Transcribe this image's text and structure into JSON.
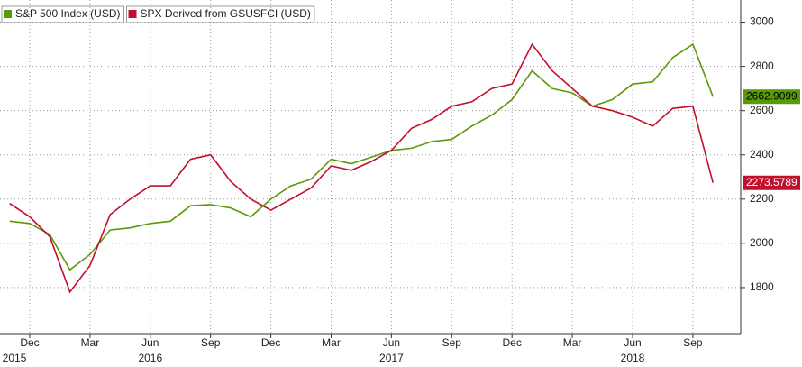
{
  "chart_data": {
    "type": "line",
    "x": [
      "2015-11",
      "2015-12",
      "2016-01",
      "2016-02",
      "2016-03",
      "2016-04",
      "2016-05",
      "2016-06",
      "2016-07",
      "2016-08",
      "2016-09",
      "2016-10",
      "2016-11",
      "2016-12",
      "2017-01",
      "2017-02",
      "2017-03",
      "2017-04",
      "2017-05",
      "2017-06",
      "2017-07",
      "2017-08",
      "2017-09",
      "2017-10",
      "2017-11",
      "2017-12",
      "2018-01",
      "2018-02",
      "2018-03",
      "2018-04",
      "2018-05",
      "2018-06",
      "2018-07",
      "2018-08",
      "2018-09",
      "2018-10"
    ],
    "series": [
      {
        "name": "S&P 500 Index (USD)",
        "color": "#5a9a08",
        "values": [
          2100,
          2090,
          2040,
          1880,
          1950,
          2060,
          2070,
          2090,
          2100,
          2170,
          2175,
          2160,
          2120,
          2200,
          2260,
          2290,
          2380,
          2360,
          2390,
          2420,
          2430,
          2460,
          2470,
          2530,
          2580,
          2650,
          2780,
          2700,
          2680,
          2620,
          2650,
          2720,
          2730,
          2840,
          2900,
          2662.9099
        ]
      },
      {
        "name": "SPX Derived from GSUSFCI (USD)",
        "color": "#c0102c",
        "values": [
          2180,
          2120,
          2030,
          1780,
          1900,
          2130,
          2200,
          2260,
          2260,
          2380,
          2400,
          2280,
          2200,
          2150,
          2200,
          2250,
          2350,
          2330,
          2370,
          2420,
          2520,
          2560,
          2620,
          2640,
          2700,
          2720,
          2900,
          2780,
          2700,
          2620,
          2600,
          2570,
          2530,
          2610,
          2620,
          2273.5789
        ]
      }
    ],
    "ylim": [
      1600,
      3100
    ],
    "yticks": [
      1800,
      2000,
      2200,
      2400,
      2600,
      2800,
      3000
    ],
    "xticks": [
      {
        "value": "2015-12",
        "label": "Dec"
      },
      {
        "value": "2016-03",
        "label": "Mar"
      },
      {
        "value": "2016-06",
        "label": "Jun"
      },
      {
        "value": "2016-09",
        "label": "Sep"
      },
      {
        "value": "2016-12",
        "label": "Dec"
      },
      {
        "value": "2017-03",
        "label": "Mar"
      },
      {
        "value": "2017-06",
        "label": "Jun"
      },
      {
        "value": "2017-09",
        "label": "Sep"
      },
      {
        "value": "2017-12",
        "label": "Dec"
      },
      {
        "value": "2018-03",
        "label": "Mar"
      },
      {
        "value": "2018-06",
        "label": "Jun"
      },
      {
        "value": "2018-09",
        "label": "Sep"
      }
    ],
    "year_labels": [
      {
        "value": "2015-11",
        "label": "2015"
      },
      {
        "value": "2016-06",
        "label": "2016"
      },
      {
        "value": "2017-06",
        "label": "2017"
      },
      {
        "value": "2018-06",
        "label": "2018"
      }
    ],
    "grid": true
  }
}
